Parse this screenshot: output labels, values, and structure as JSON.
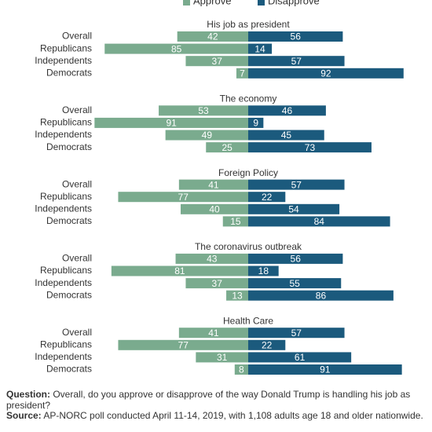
{
  "chart_data": {
    "type": "diverging_bar",
    "series": [
      {
        "name": "Approve",
        "color": "#7aab8e"
      },
      {
        "name": "Disapprove",
        "color": "#1b5a7d"
      }
    ],
    "categories": [
      "Overall",
      "Republicans",
      "Independents",
      "Democrats"
    ],
    "panels": [
      {
        "title": "His job as president",
        "values": [
          [
            42,
            85,
            37,
            7
          ],
          [
            56,
            14,
            57,
            92
          ]
        ]
      },
      {
        "title": "The economy",
        "values": [
          [
            53,
            91,
            49,
            25
          ],
          [
            46,
            9,
            45,
            73
          ]
        ]
      },
      {
        "title": "Foreign Policy",
        "values": [
          [
            41,
            77,
            40,
            15
          ],
          [
            57,
            22,
            54,
            84
          ]
        ]
      },
      {
        "title": "The coronavirus outbreak",
        "values": [
          [
            43,
            81,
            37,
            13
          ],
          [
            56,
            18,
            55,
            86
          ]
        ]
      },
      {
        "title": "Health Care",
        "values": [
          [
            41,
            77,
            31,
            8
          ],
          [
            57,
            22,
            61,
            91
          ]
        ]
      }
    ]
  },
  "notes": {
    "question_label": "Question:",
    "question": "Overall, do you approve or disapprove of the way Donald Trump is handling his job as president?",
    "source_label": "Source:",
    "source": "AP-NORC poll conducted April 11-14, 2019, with 1,108 adults age 18 and older nationwide."
  }
}
